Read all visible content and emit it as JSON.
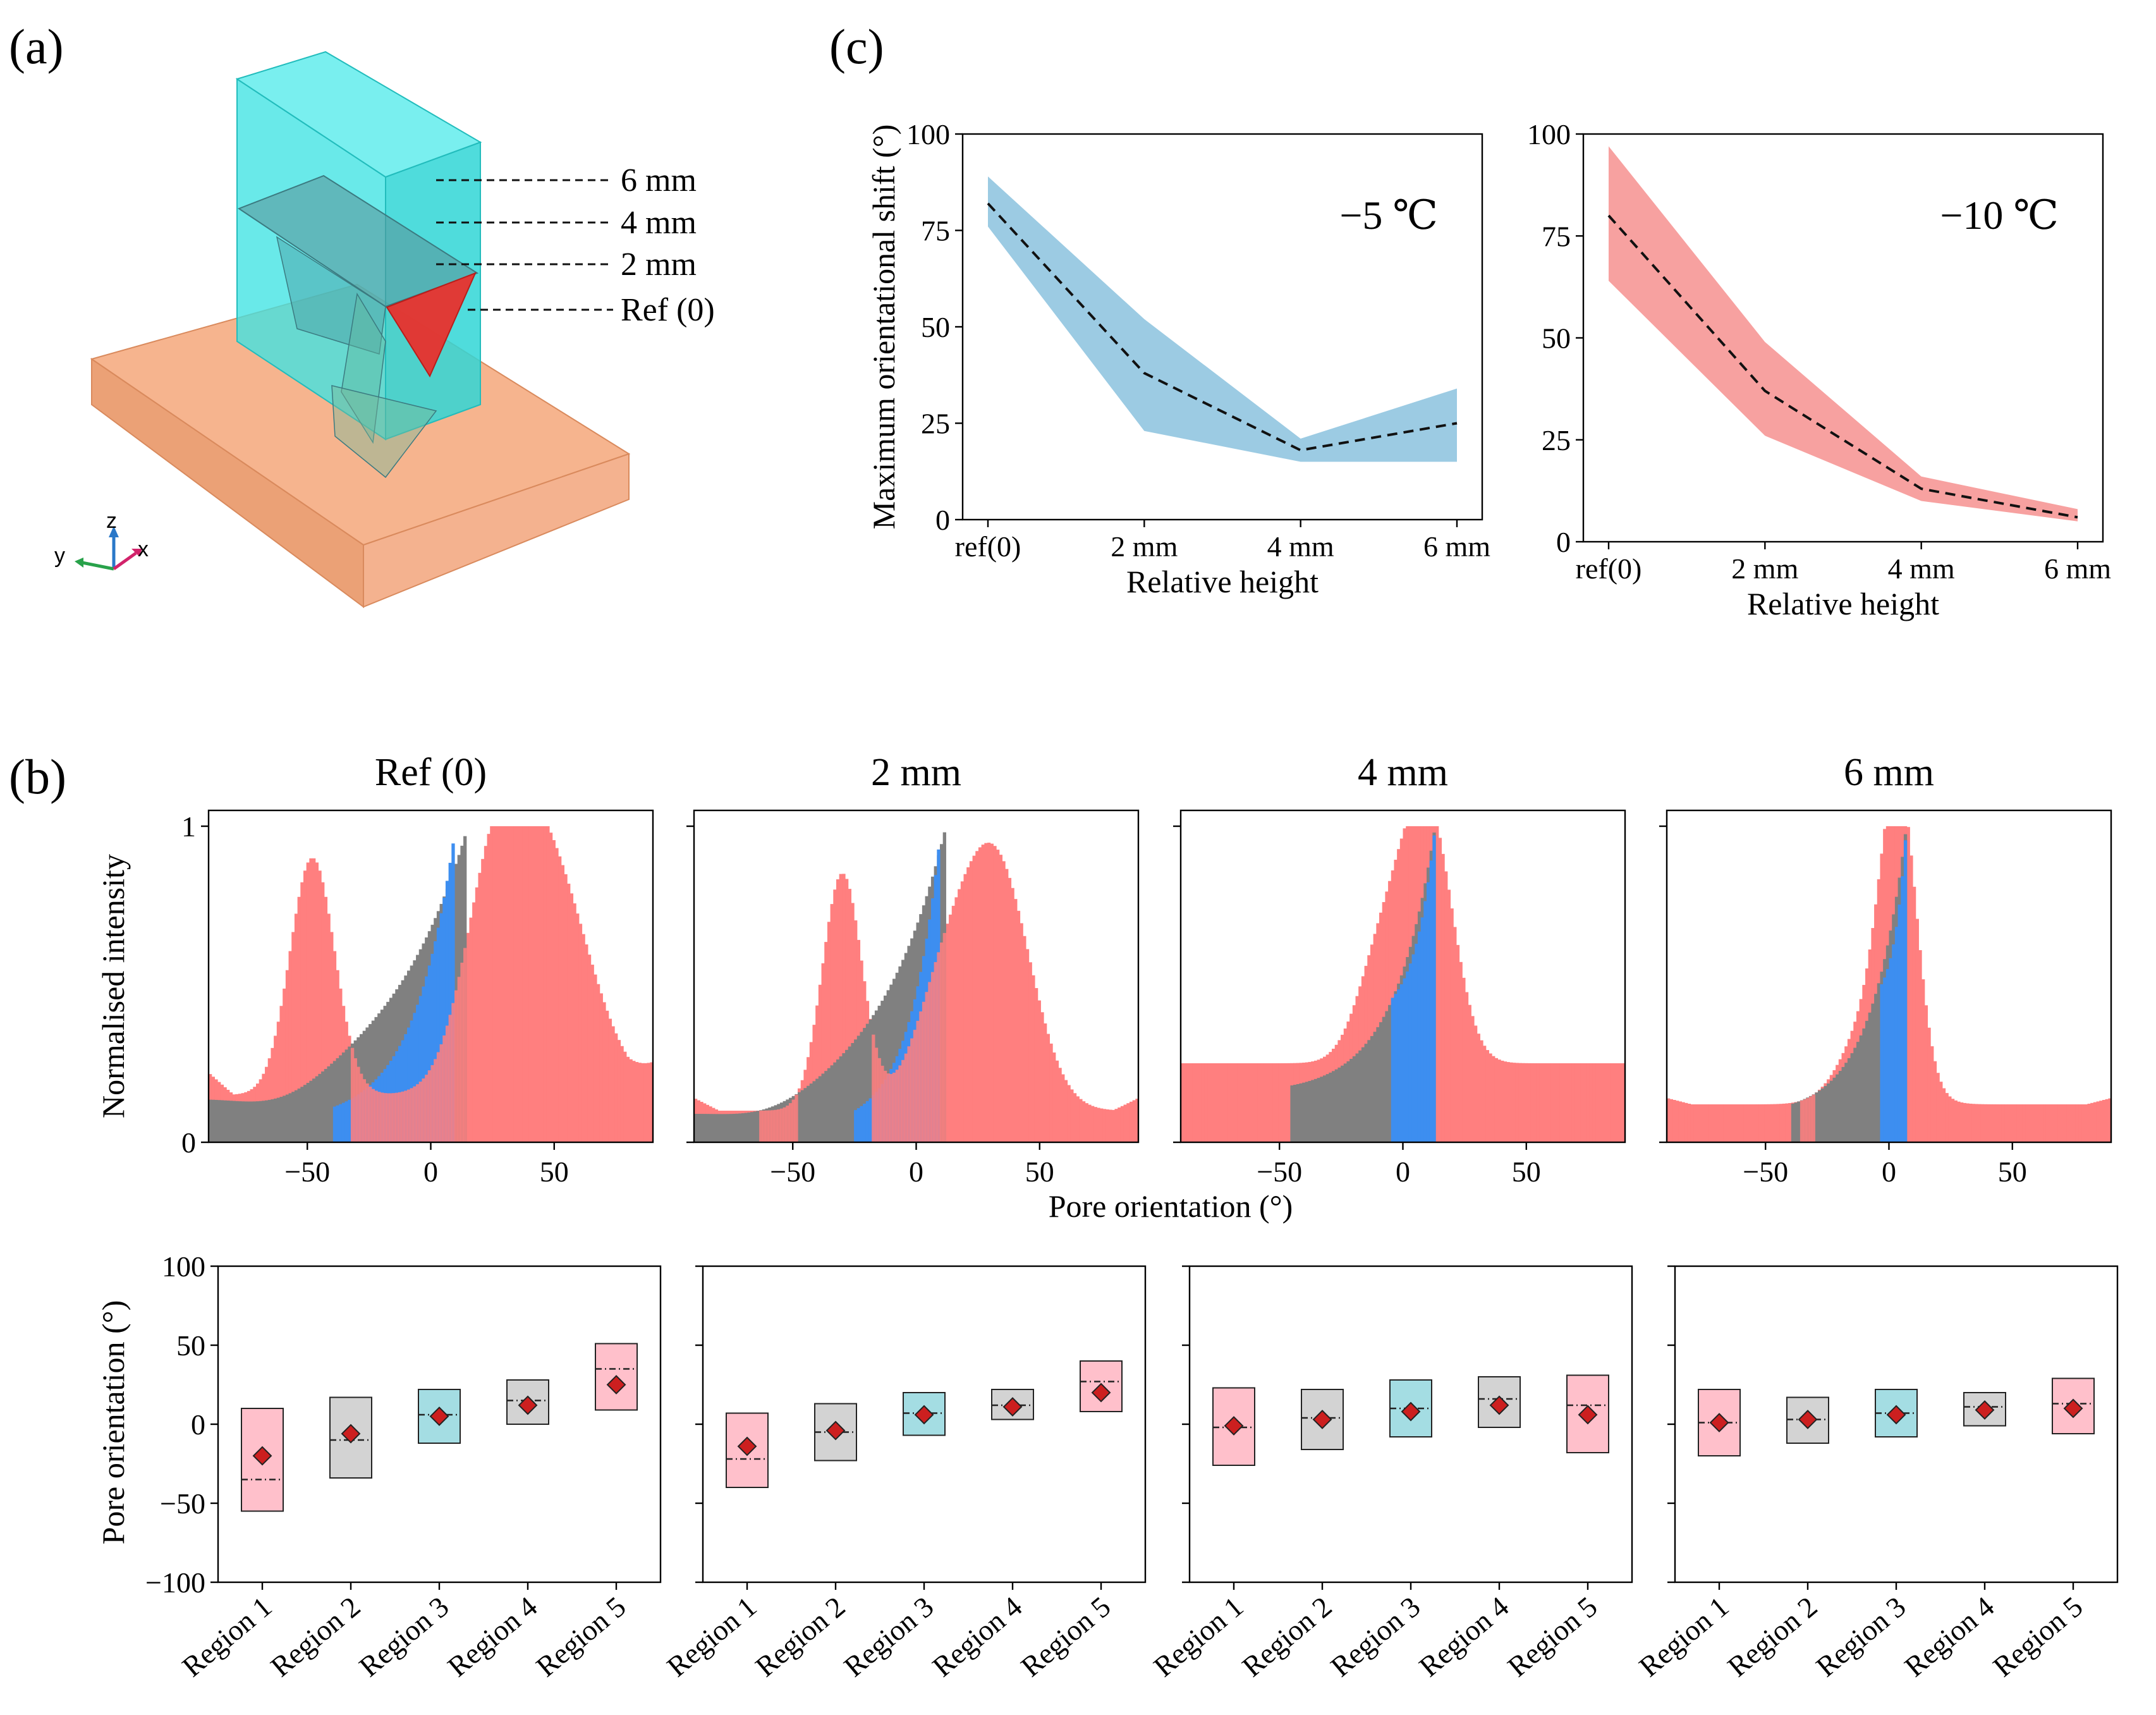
{
  "panel_a": {
    "label": "(a)",
    "height_labels": [
      "6 mm",
      "4 mm",
      "2 mm",
      "Ref (0)"
    ],
    "axes": {
      "x": "x",
      "y": "y",
      "z": "z"
    },
    "colors": {
      "column": "#3fe3e3",
      "base": "#f4a77a",
      "ref_slice": "#e8302c"
    }
  },
  "chart_data": [
    {
      "id": "c-left",
      "panel_label": "(c)",
      "type": "area",
      "annotation": "−5 ℃",
      "xlabel": "Relative height",
      "ylabel": "Maximum orientational shift (°)",
      "categories": [
        "ref(0)",
        "2 mm",
        "4 mm",
        "6 mm"
      ],
      "mean": [
        82,
        38,
        18,
        25
      ],
      "lower": [
        76,
        23,
        15,
        15
      ],
      "upper": [
        89,
        52,
        21,
        34
      ],
      "ylim": [
        0,
        100
      ],
      "yticks": [
        0,
        25,
        50,
        75,
        100
      ],
      "color": "#9ccbe3"
    },
    {
      "id": "c-right",
      "type": "area",
      "annotation": "−10 ℃",
      "xlabel": "Relative height",
      "ylabel": "",
      "categories": [
        "ref(0)",
        "2 mm",
        "4 mm",
        "6 mm"
      ],
      "mean": [
        80,
        37,
        13,
        6
      ],
      "lower": [
        64,
        26,
        10,
        5
      ],
      "upper": [
        97,
        49,
        16,
        8
      ],
      "ylim": [
        0,
        100
      ],
      "yticks": [
        0,
        25,
        50,
        75,
        100
      ],
      "color": "#f7a1a0"
    },
    {
      "id": "b-histograms",
      "panel_label": "(b)",
      "type": "histogram",
      "titles": [
        "Ref (0)",
        "2 mm",
        "4 mm",
        "6 mm"
      ],
      "xlabel": "Pore orientation (°)",
      "ylabel": "Normalised intensity",
      "xlim": [
        -90,
        90
      ],
      "xticks": [
        -50,
        0,
        50
      ],
      "yticks": [
        0,
        1
      ],
      "ylim": [
        0,
        1
      ],
      "colors": {
        "pink": "#ff7f7f",
        "grey": "#808080",
        "blue": "#3d8ef0"
      },
      "panels": [
        {
          "pink": {
            "peaks": [
              [
                -48,
                0.75,
                9
              ],
              [
                45,
                0.78,
                18
              ],
              [
                25,
                0.45,
                12
              ]
            ],
            "base": 0.15,
            "edge": 0.22
          },
          "grey": {
            "lo": -90,
            "hi": 15,
            "start": 0.15,
            "end": 1.0,
            "sharp": 0.03,
            "dip": 0.12
          },
          "blue": {
            "lo": -40,
            "hi": 10,
            "start": 0.11,
            "end": 1.0,
            "sharp": 0.06
          }
        },
        {
          "pink": {
            "peaks": [
              [
                -30,
                0.75,
                8
              ],
              [
                32,
                0.78,
                14
              ],
              [
                10,
                0.3,
                12
              ]
            ],
            "base": 0.1,
            "edge": 0.14
          },
          "grey": {
            "lo": -90,
            "hi": 12,
            "start": 0.1,
            "end": 1.0,
            "sharp": 0.035,
            "dip": 0.08
          },
          "blue": {
            "lo": -25,
            "hi": 10,
            "start": 0.1,
            "end": 1.0,
            "sharp": 0.08
          }
        },
        {
          "pink": {
            "peaks": [
              [
                10,
                0.78,
                10
              ],
              [
                -8,
                0.35,
                10
              ]
            ],
            "base": 0.25,
            "edge": 0.25
          },
          "grey": {
            "lo": -45,
            "hi": 13,
            "start": 0.18,
            "end": 1.0,
            "sharp": 0.06,
            "dip": 0
          },
          "blue": {
            "lo": -5,
            "hi": 13,
            "start": 0.45,
            "end": 1.0,
            "sharp": 0.12
          }
        },
        {
          "pink": {
            "peaks": [
              [
                4,
                0.82,
                7
              ],
              [
                -5,
                0.3,
                12
              ]
            ],
            "base": 0.12,
            "edge": 0.14
          },
          "grey": {
            "lo": -40,
            "hi": 7,
            "start": 0.12,
            "end": 1.0,
            "sharp": 0.07,
            "dip": 0
          },
          "blue": {
            "lo": -3,
            "hi": 7,
            "start": 0.5,
            "end": 1.0,
            "sharp": 0.2
          }
        }
      ]
    },
    {
      "id": "b-boxes",
      "type": "box",
      "ylabel": "Pore orientation (°)",
      "ylim": [
        -100,
        100
      ],
      "yticks": [
        -100,
        -50,
        0,
        50,
        100
      ],
      "categories": [
        "Region 1",
        "Region 2",
        "Region 3",
        "Region 4",
        "Region 5"
      ],
      "box_colors": [
        "#ffc0cb",
        "#d3d3d3",
        "#a4dde3",
        "#d3d3d3",
        "#ffc0cb"
      ],
      "marker_color": "#cc1f1f",
      "panels": [
        [
          {
            "low": -55,
            "high": 10,
            "median": -35,
            "mean": -20
          },
          {
            "low": -34,
            "high": 17,
            "median": -10,
            "mean": -6
          },
          {
            "low": -12,
            "high": 22,
            "median": 6,
            "mean": 5
          },
          {
            "low": 0,
            "high": 28,
            "median": 15,
            "mean": 12
          },
          {
            "low": 9,
            "high": 51,
            "median": 35,
            "mean": 25
          }
        ],
        [
          {
            "low": -40,
            "high": 7,
            "median": -22,
            "mean": -14
          },
          {
            "low": -23,
            "high": 13,
            "median": -5,
            "mean": -4
          },
          {
            "low": -7,
            "high": 20,
            "median": 7,
            "mean": 6
          },
          {
            "low": 3,
            "high": 22,
            "median": 12,
            "mean": 11
          },
          {
            "low": 8,
            "high": 40,
            "median": 27,
            "mean": 20
          }
        ],
        [
          {
            "low": -26,
            "high": 23,
            "median": -2,
            "mean": -1
          },
          {
            "low": -16,
            "high": 22,
            "median": 4,
            "mean": 3
          },
          {
            "low": -8,
            "high": 28,
            "median": 10,
            "mean": 8
          },
          {
            "low": -2,
            "high": 30,
            "median": 16,
            "mean": 12
          },
          {
            "low": -18,
            "high": 31,
            "median": 12,
            "mean": 6
          }
        ],
        [
          {
            "low": -20,
            "high": 22,
            "median": 1,
            "mean": 1
          },
          {
            "low": -12,
            "high": 17,
            "median": 3,
            "mean": 3
          },
          {
            "low": -8,
            "high": 22,
            "median": 7,
            "mean": 6
          },
          {
            "low": -1,
            "high": 20,
            "median": 11,
            "mean": 9
          },
          {
            "low": -6,
            "high": 29,
            "median": 13,
            "mean": 10
          }
        ]
      ]
    }
  ]
}
